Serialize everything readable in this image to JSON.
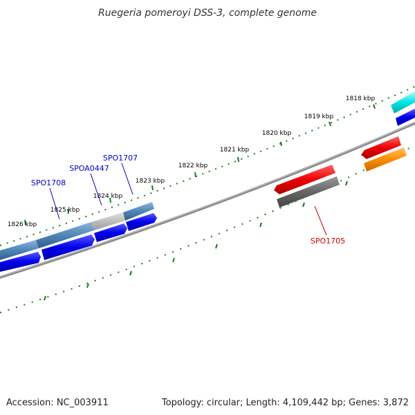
{
  "title": "Ruegeria pomeroyi DSS-3, complete genome",
  "footer": {
    "accession": "Accession: NC_003911",
    "summary": "Topology: circular; Length: 4,109,442 bp; Genes: 3,872"
  },
  "ticks": [
    "1818 kbp",
    "1819 kbp",
    "1820 kbp",
    "1821 kbp",
    "1822 kbp",
    "1823 kbp",
    "1824 kbp",
    "1825 kbp",
    "1826 kbp"
  ],
  "gene_labels": [
    {
      "id": "spo1707",
      "text": "SPO1707",
      "color": "#0000cc"
    },
    {
      "id": "spoa0447",
      "text": "SPOA0447",
      "color": "#0000cc"
    },
    {
      "id": "spo1708",
      "text": "SPO1708",
      "color": "#0000cc"
    },
    {
      "id": "spo1705",
      "text": "SPO1705",
      "color": "#cc0000"
    }
  ],
  "colors": {
    "backbone": "#8a8a8a",
    "tick_dots": "#1a7a1a",
    "cds_forward": "#0000ee",
    "cds_blue_steel": "#4f86b8",
    "cds_gray": "#bdbdbd",
    "cds_red": "#ee0000",
    "cds_dark_gray": "#666666",
    "cds_orange": "#ff8c00",
    "cds_cyan": "#00e5e5"
  }
}
